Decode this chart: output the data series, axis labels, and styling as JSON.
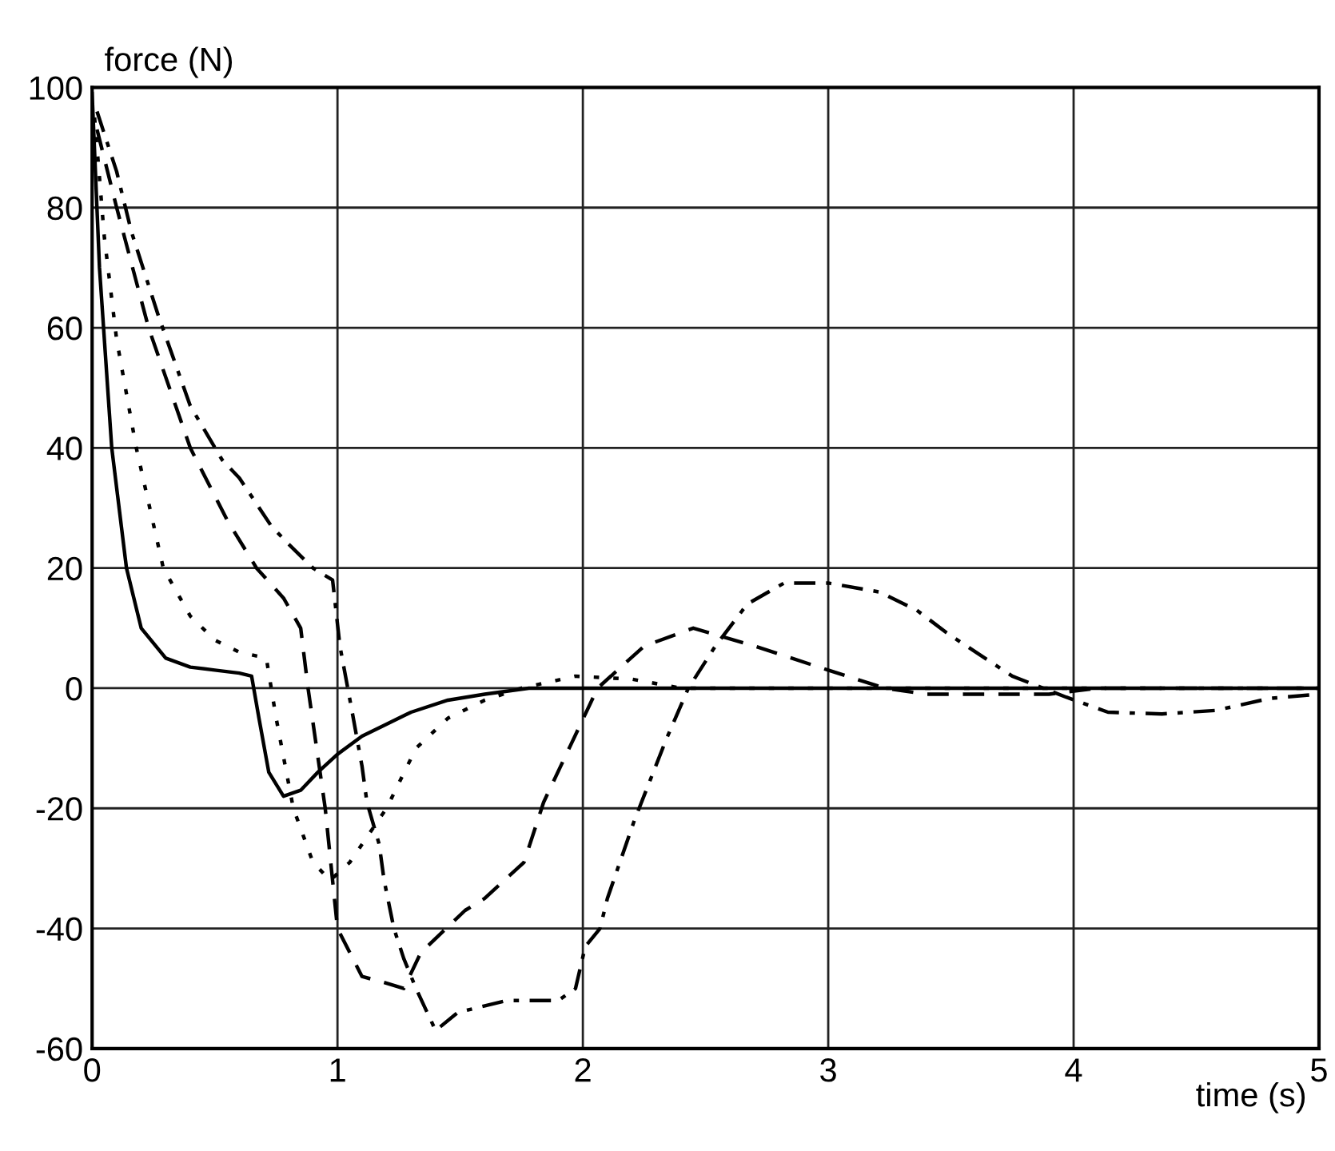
{
  "chart_data": {
    "type": "line",
    "xlabel": "time (s)",
    "ylabel": "force (N)",
    "xlim": [
      0,
      5
    ],
    "ylim": [
      -60,
      100
    ],
    "xticks": [
      0,
      1,
      2,
      3,
      4,
      5
    ],
    "yticks": [
      -60,
      -40,
      -20,
      0,
      20,
      40,
      60,
      80,
      100
    ],
    "grid": true,
    "legend": false,
    "marker": "none",
    "series": [
      {
        "color": "#000000",
        "line_style": "solid",
        "x": [
          0,
          0.03,
          0.08,
          0.14,
          0.2,
          0.3,
          0.4,
          0.5,
          0.6,
          0.65,
          0.68,
          0.72,
          0.78,
          0.85,
          0.92,
          1.0,
          1.1,
          1.2,
          1.3,
          1.45,
          1.6,
          1.78,
          2.0,
          3.0,
          4.0,
          5.0
        ],
        "values": [
          99,
          70,
          40,
          20,
          10,
          5,
          3.5,
          3,
          2.5,
          2,
          -5,
          -14,
          -18,
          -17,
          -14,
          -11,
          -8,
          -6,
          -4,
          -2,
          -1,
          0,
          0,
          0,
          0,
          0
        ]
      },
      {
        "color": "#000000",
        "line_style": "dotted",
        "x": [
          0.01,
          0.05,
          0.1,
          0.18,
          0.29,
          0.4,
          0.5,
          0.6,
          0.71,
          0.75,
          0.82,
          0.9,
          0.97,
          1.05,
          1.2,
          1.32,
          1.45,
          1.6,
          1.75,
          1.97,
          2.2,
          2.4,
          3.0,
          4.0,
          5.0
        ],
        "values": [
          95,
          75,
          58,
          40,
          20,
          12,
          8,
          6,
          5,
          -5,
          -20,
          -29,
          -32,
          -29,
          -20,
          -10,
          -5,
          -2,
          0,
          2,
          1.5,
          0,
          0,
          0,
          0
        ]
      },
      {
        "color": "#000000",
        "line_style": "dashed",
        "x": [
          0.02,
          0.1,
          0.23,
          0.4,
          0.55,
          0.67,
          0.78,
          0.85,
          0.88,
          0.95,
          1.0,
          1.1,
          1.19,
          1.27,
          1.34,
          1.52,
          1.6,
          1.76,
          1.84,
          1.95,
          2.06,
          2.25,
          2.45,
          2.7,
          3.0,
          3.23,
          3.4,
          3.9,
          4.1,
          5.0
        ],
        "values": [
          93,
          80,
          60,
          40,
          28,
          20,
          15,
          10,
          0,
          -20,
          -40,
          -48,
          -49,
          -50,
          -44,
          -37,
          -35,
          -29,
          -19,
          -9.5,
          0,
          7,
          10,
          7,
          3,
          0,
          -1,
          -1,
          0,
          0
        ]
      },
      {
        "color": "#000000",
        "line_style": "dashdot",
        "x": [
          0.02,
          0.1,
          0.16,
          0.27,
          0.4,
          0.53,
          0.6,
          0.73,
          0.8,
          0.9,
          0.98,
          1.01,
          1.06,
          1.1,
          1.12,
          1.17,
          1.19,
          1.23,
          1.27,
          1.32,
          1.4,
          1.49,
          1.69,
          1.9,
          1.97,
          2.01,
          2.07,
          2.1,
          2.21,
          2.34,
          2.43,
          2.54,
          2.67,
          2.82,
          3.0,
          3.21,
          3.36,
          3.49,
          3.62,
          3.75,
          3.97,
          4.14,
          4.36,
          4.58,
          4.8,
          5.0
        ],
        "values": [
          96,
          86,
          76,
          62,
          47,
          38,
          35,
          27,
          24,
          20,
          18,
          7,
          -4,
          -13,
          -19,
          -26,
          -32,
          -40,
          -45,
          -50,
          -57,
          -54,
          -52,
          -52,
          -50,
          -43,
          -40,
          -35,
          -22,
          -8.5,
          0,
          7,
          14,
          17.5,
          17.5,
          16,
          13,
          9,
          5.5,
          2,
          -1.5,
          -4,
          -4.3,
          -3.7,
          -1.7,
          -1
        ]
      }
    ]
  }
}
